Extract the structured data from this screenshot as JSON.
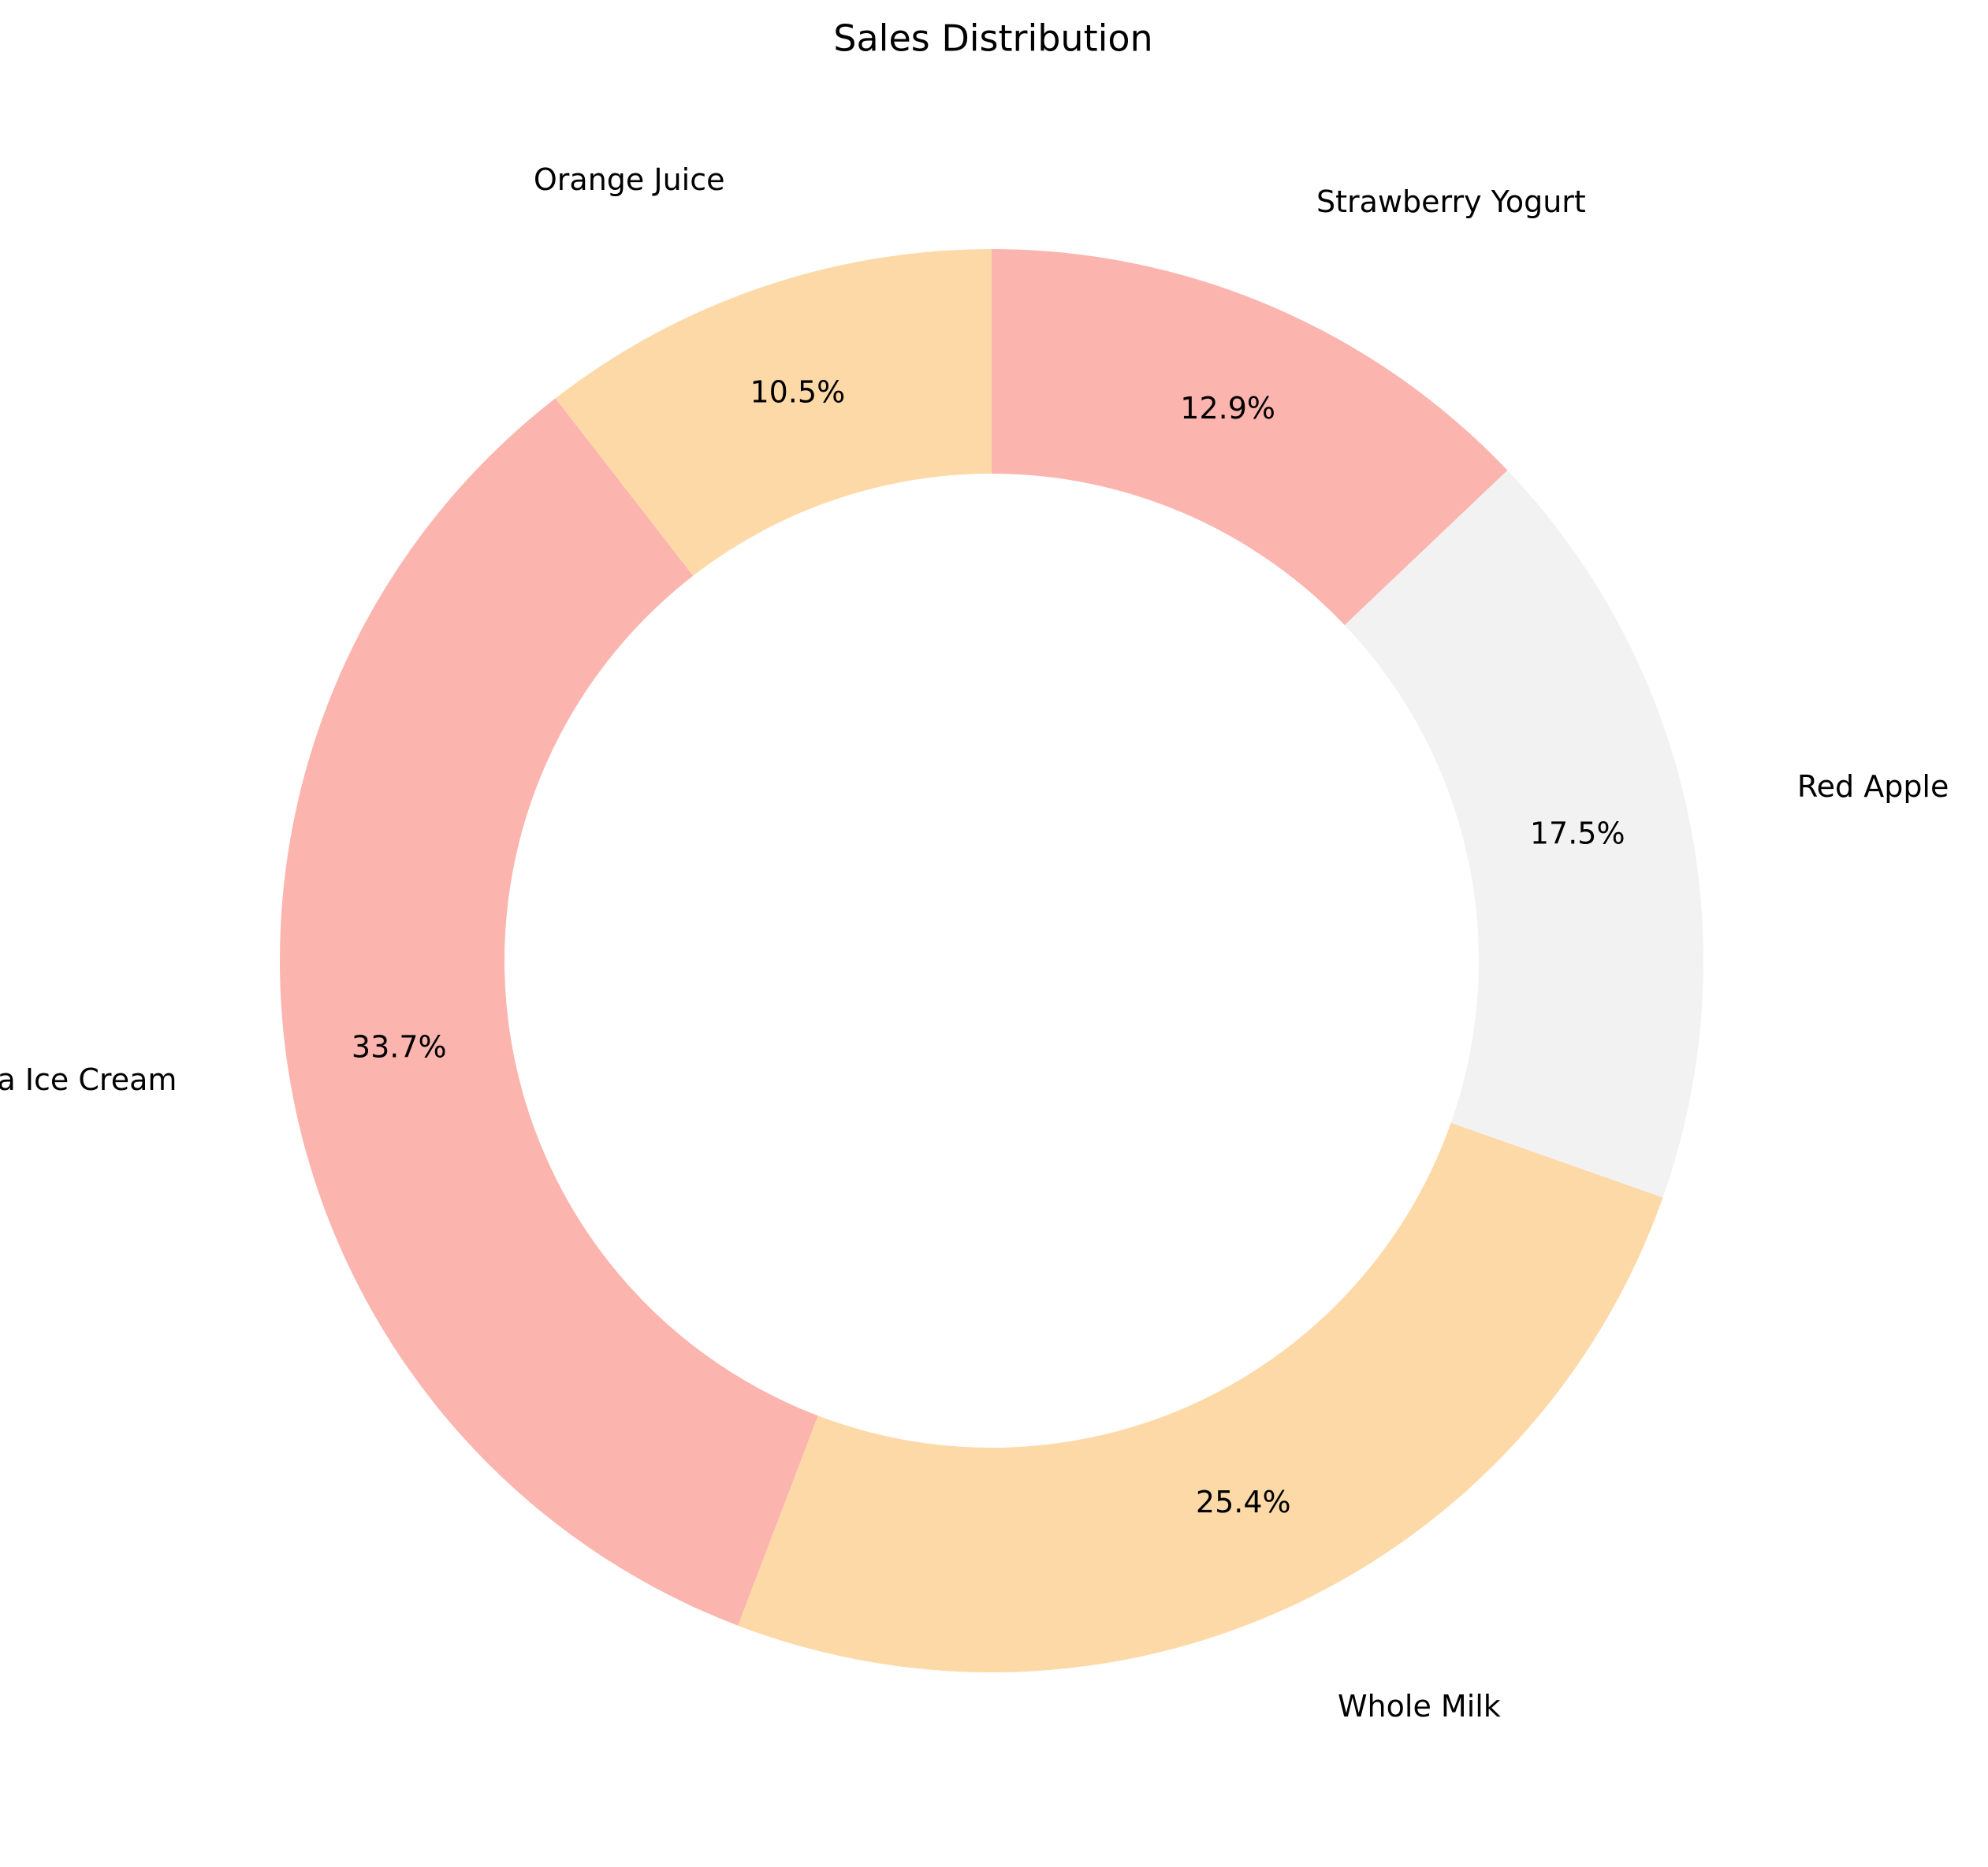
{
  "chart_data": {
    "type": "pie",
    "style": "donut",
    "title": "Sales Distribution",
    "start_angle_deg": 90,
    "direction": "counterclockwise",
    "legend": "none",
    "categories": [
      "Orange Juice",
      "Vanilla Ice Cream",
      "Whole Milk",
      "Red Apple",
      "Strawberry Yogurt"
    ],
    "values": [
      10.5,
      33.7,
      25.4,
      17.5,
      12.9
    ],
    "percent_labels": [
      "10.5%",
      "33.7%",
      "25.4%",
      "17.5%",
      "12.9%"
    ],
    "colors": [
      "#fdd9a8",
      "#fbb4ae",
      "#fdd9a8",
      "#f2f2f2",
      "#fbb4ae"
    ]
  }
}
